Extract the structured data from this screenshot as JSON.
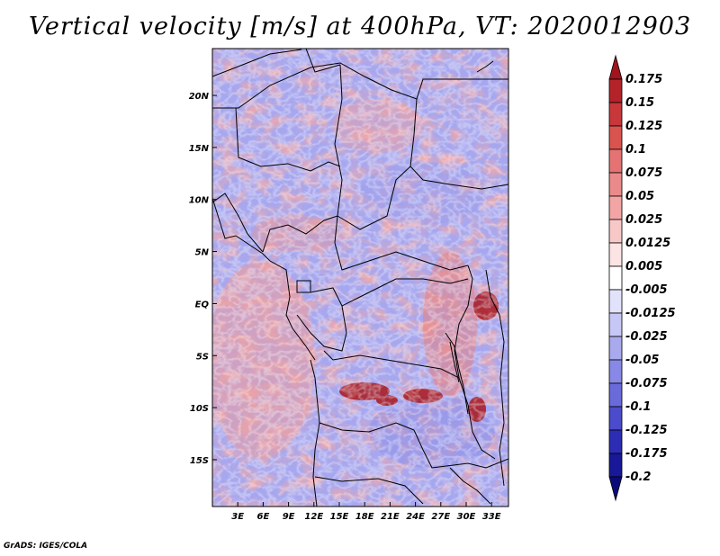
{
  "title": "Vertical velocity [m/s] at 400hPa, VT: 2020012903",
  "footer": "GrADS: IGES/COLA",
  "chart_data": {
    "type": "heatmap",
    "title": "Vertical velocity [m/s] at 400hPa, VT: 2020012903",
    "variable": "Vertical velocity",
    "units": "m/s",
    "level": "400hPa",
    "valid_time": "2020012903",
    "x_range": [
      0,
      35
    ],
    "y_range": [
      -19.5,
      24.5
    ],
    "x_ticks": [
      {
        "value": 3,
        "label": "3E"
      },
      {
        "value": 6,
        "label": "6E"
      },
      {
        "value": 9,
        "label": "9E"
      },
      {
        "value": 12,
        "label": "12E"
      },
      {
        "value": 15,
        "label": "15E"
      },
      {
        "value": 18,
        "label": "18E"
      },
      {
        "value": 21,
        "label": "21E"
      },
      {
        "value": 24,
        "label": "24E"
      },
      {
        "value": 27,
        "label": "27E"
      },
      {
        "value": 30,
        "label": "30E"
      },
      {
        "value": 33,
        "label": "33E"
      }
    ],
    "y_ticks": [
      {
        "value": 20,
        "label": "20N"
      },
      {
        "value": 15,
        "label": "15N"
      },
      {
        "value": 10,
        "label": "10N"
      },
      {
        "value": 5,
        "label": "5N"
      },
      {
        "value": 0,
        "label": "EQ"
      },
      {
        "value": -5,
        "label": "5S"
      },
      {
        "value": -10,
        "label": "10S"
      },
      {
        "value": -15,
        "label": "15S"
      }
    ],
    "colorbar": {
      "levels": [
        "0.175",
        "0.15",
        "0.125",
        "0.1",
        "0.075",
        "0.05",
        "0.025",
        "0.0125",
        "0.005",
        "-0.005",
        "-0.0125",
        "-0.025",
        "-0.05",
        "-0.075",
        "-0.1",
        "-0.125",
        "-0.175",
        "-0.2"
      ],
      "colors": [
        "#a0141e",
        "#b4232a",
        "#c8373a",
        "#d9534f",
        "#e57373",
        "#eb8a8a",
        "#f3a5a5",
        "#f8c8c8",
        "#fce4e4",
        "#ffffff",
        "#e2e2fb",
        "#c7c7f5",
        "#a9a9ee",
        "#8888e6",
        "#6a6adb",
        "#4b4bcc",
        "#2c2cb4",
        "#181898",
        "#0b0b78"
      ]
    },
    "grid": false,
    "legend": "right"
  }
}
